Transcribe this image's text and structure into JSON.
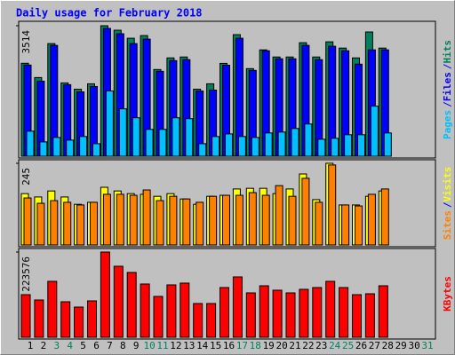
{
  "chart_data": {
    "type": "bar",
    "title": "Daily usage for February 2018",
    "categories": [
      "1",
      "2",
      "3",
      "4",
      "5",
      "6",
      "7",
      "8",
      "9",
      "10",
      "11",
      "12",
      "13",
      "14",
      "15",
      "16",
      "17",
      "18",
      "19",
      "20",
      "21",
      "22",
      "23",
      "24",
      "25",
      "26",
      "27",
      "28",
      "29",
      "30",
      "31"
    ],
    "highlight_indices": [
      2,
      3,
      9,
      10,
      16,
      17,
      23,
      24,
      30
    ],
    "label_color": "#000000",
    "highlight_color": "#00805c",
    "separator": "/",
    "panels": [
      {
        "ylim": [
          0,
          3514
        ],
        "yticks": [
          3514
        ],
        "series": [
          {
            "name": "Hits",
            "color": "#00805c",
            "values": [
              2503,
              2118,
              3033,
              1974,
              1805,
              1950,
              3514,
              3394,
              3177,
              3249,
              2335,
              2648,
              2672,
              1805,
              1950,
              2500,
              3274,
              2359,
              2864,
              2672,
              2672,
              3057,
              2672,
              3081,
              2912,
              2648,
              3346,
              2912,
              null,
              null,
              null
            ]
          },
          {
            "name": "Files",
            "color": "#0000ff",
            "values": [
              2455,
              2022,
              2985,
              1926,
              1733,
              1877,
              3442,
              3298,
              3033,
              3153,
              2287,
              2575,
              2600,
              1757,
              1781,
              2450,
              3177,
              2311,
              2840,
              2624,
              2624,
              2985,
              2600,
              2961,
              2840,
              2479,
              2864,
              2864,
              null,
              null,
              null
            ]
          },
          {
            "name": "Pages",
            "color": "#00c0ff",
            "values": [
              674,
              385,
              505,
              433,
              530,
              337,
              1757,
              1276,
              1035,
              722,
              722,
              1035,
              1011,
              337,
              530,
              600,
              530,
              505,
              626,
              650,
              746,
              867,
              457,
              481,
              578,
              578,
              1348,
              626,
              null,
              null,
              null
            ]
          }
        ]
      },
      {
        "ylim": [
          0,
          245
        ],
        "yticks": [
          245
        ],
        "series": [
          {
            "name": "Visits",
            "color": "#ffff00",
            "values": [
              154,
              144,
              162,
              144,
              122,
              128,
              173,
              162,
              154,
              152,
              146,
              154,
              138,
              122,
              146,
              149,
              168,
              170,
              170,
              154,
              168,
              213,
              136,
              245,
              120,
              120,
              146,
              162,
              null,
              null,
              null
            ]
          },
          {
            "name": "Sites",
            "color": "#ff8000",
            "values": [
              141,
              125,
              133,
              128,
              120,
              128,
              152,
              152,
              149,
              165,
              133,
              146,
              138,
              128,
              146,
              149,
              149,
              157,
              149,
              178,
              146,
              200,
              128,
              240,
              120,
              117,
              152,
              168,
              null,
              null,
              null
            ]
          }
        ]
      },
      {
        "ylim": [
          0,
          223576
        ],
        "yticks": [
          223576
        ],
        "series": [
          {
            "name": "KBytes",
            "color": "#ff0000",
            "values": [
              111792,
              97818,
              146727,
              93160,
              79186,
              95489,
              223576,
              186320,
              170017,
              139740,
              107134,
              137411,
              142069,
              88502,
              88502,
              130424,
              158372,
              116450,
              135082,
              123437,
              116450,
              125766,
              130424,
              146727,
              130424,
              111792,
              114121,
              135082,
              null,
              null,
              null
            ]
          }
        ]
      }
    ]
  }
}
